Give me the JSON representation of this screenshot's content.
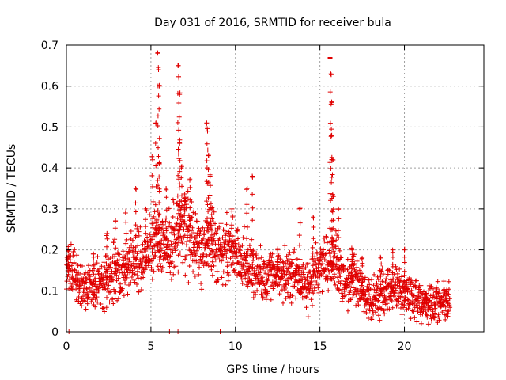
{
  "chart_data": {
    "type": "scatter",
    "title": "Day 031 of 2016, SRMTID for receiver bula",
    "xlabel": "GPS time / hours",
    "ylabel": "SRMTID / TECUs",
    "xlim": [
      0,
      24.7
    ],
    "ylim": [
      0,
      0.7
    ],
    "x_ticks": [
      0,
      5,
      10,
      15,
      20
    ],
    "y_ticks": [
      0,
      0.1,
      0.2,
      0.3,
      0.4,
      0.5,
      0.6,
      0.7
    ],
    "x_tick_labels": [
      "0",
      "5",
      "10",
      "15",
      "20"
    ],
    "y_tick_labels": [
      "0",
      "0.1",
      "0.2",
      "0.3",
      "0.4",
      "0.5",
      "0.6",
      "0.7"
    ],
    "grid": true,
    "marker": "+",
    "series": [
      {
        "name": "SRMTID",
        "color": "#e00000",
        "trend": {
          "x": [
            0,
            0.5,
            1,
            1.5,
            2,
            2.5,
            3,
            3.5,
            4,
            4.5,
            5,
            5.5,
            6,
            6.5,
            7,
            7.5,
            8,
            8.5,
            9,
            9.5,
            10,
            10.5,
            11,
            11.5,
            12,
            12.5,
            13,
            13.5,
            14,
            14.5,
            15,
            15.5,
            16,
            16.5,
            17,
            17.5,
            18,
            18.5,
            19,
            19.5,
            20,
            20.5,
            21,
            21.5,
            22,
            22.7
          ],
          "y": [
            0.16,
            0.14,
            0.11,
            0.11,
            0.12,
            0.13,
            0.15,
            0.14,
            0.18,
            0.16,
            0.2,
            0.22,
            0.2,
            0.24,
            0.26,
            0.22,
            0.2,
            0.23,
            0.19,
            0.2,
            0.19,
            0.17,
            0.15,
            0.13,
            0.14,
            0.15,
            0.13,
            0.14,
            0.11,
            0.12,
            0.17,
            0.17,
            0.16,
            0.12,
            0.13,
            0.1,
            0.08,
            0.09,
            0.1,
            0.11,
            0.1,
            0.07,
            0.07,
            0.06,
            0.07,
            0.08
          ]
        },
        "spikes": [
          {
            "x": 0.1,
            "y": 0.2
          },
          {
            "x": 1.6,
            "y": 0.19
          },
          {
            "x": 2.4,
            "y": 0.24
          },
          {
            "x": 2.9,
            "y": 0.27
          },
          {
            "x": 3.5,
            "y": 0.29
          },
          {
            "x": 4.1,
            "y": 0.35
          },
          {
            "x": 4.7,
            "y": 0.3
          },
          {
            "x": 5.1,
            "y": 0.42
          },
          {
            "x": 5.3,
            "y": 0.51
          },
          {
            "x": 5.4,
            "y": 0.68
          },
          {
            "x": 5.45,
            "y": 0.64
          },
          {
            "x": 5.5,
            "y": 0.6
          },
          {
            "x": 5.5,
            "y": 0.41
          },
          {
            "x": 5.9,
            "y": 0.35
          },
          {
            "x": 6.6,
            "y": 0.65
          },
          {
            "x": 6.65,
            "y": 0.62
          },
          {
            "x": 6.7,
            "y": 0.58
          },
          {
            "x": 6.7,
            "y": 0.46
          },
          {
            "x": 6.8,
            "y": 0.4
          },
          {
            "x": 7.0,
            "y": 0.32
          },
          {
            "x": 7.3,
            "y": 0.37
          },
          {
            "x": 8.3,
            "y": 0.51
          },
          {
            "x": 8.35,
            "y": 0.49
          },
          {
            "x": 8.4,
            "y": 0.43
          },
          {
            "x": 8.5,
            "y": 0.38
          },
          {
            "x": 8.6,
            "y": 0.3
          },
          {
            "x": 9.8,
            "y": 0.3
          },
          {
            "x": 10.7,
            "y": 0.35
          },
          {
            "x": 11.0,
            "y": 0.38
          },
          {
            "x": 12.5,
            "y": 0.2
          },
          {
            "x": 13.8,
            "y": 0.3
          },
          {
            "x": 14.6,
            "y": 0.28
          },
          {
            "x": 15.6,
            "y": 0.67
          },
          {
            "x": 15.65,
            "y": 0.63
          },
          {
            "x": 15.7,
            "y": 0.56
          },
          {
            "x": 15.7,
            "y": 0.48
          },
          {
            "x": 15.75,
            "y": 0.42
          },
          {
            "x": 15.8,
            "y": 0.33
          },
          {
            "x": 16.1,
            "y": 0.3
          },
          {
            "x": 16.9,
            "y": 0.2
          },
          {
            "x": 17.5,
            "y": 0.18
          },
          {
            "x": 18.6,
            "y": 0.18
          },
          {
            "x": 19.3,
            "y": 0.2
          },
          {
            "x": 20.0,
            "y": 0.2
          },
          {
            "x": 21.3,
            "y": 0.09
          },
          {
            "x": 22.5,
            "y": 0.1
          }
        ],
        "zero_points": [
          {
            "x": 0.15,
            "y": 0
          },
          {
            "x": 6.1,
            "y": 0
          },
          {
            "x": 6.6,
            "y": 0
          },
          {
            "x": 9.1,
            "y": 0
          }
        ]
      }
    ]
  }
}
